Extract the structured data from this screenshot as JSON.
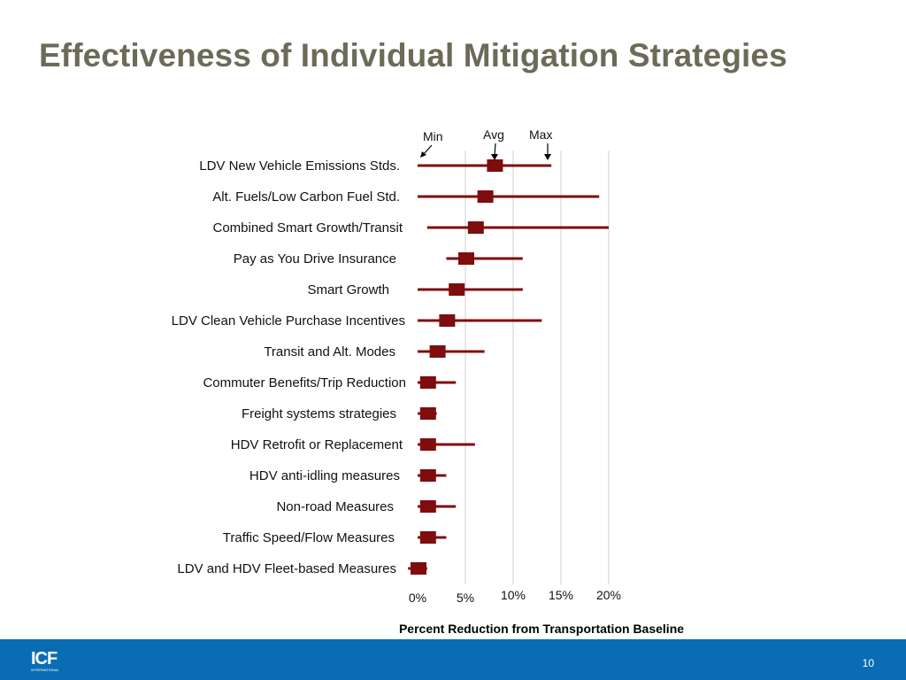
{
  "slide": {
    "title": "Effectiveness of Individual Mitigation Strategies",
    "page_number": "10",
    "logo_text": "ICF",
    "logo_subtext": "INTERNATIONAL"
  },
  "colors": {
    "series": "#7f0d0d",
    "title": "#6b6b58",
    "footer": "#0a6db3",
    "grid": "#cfcfcf"
  },
  "chart_data": {
    "type": "range_plot",
    "title": "",
    "xlabel": "Percent Reduction from Transportation Baseline",
    "ylabel": "",
    "xlim": [
      0,
      20
    ],
    "x_ticks": [
      "0%",
      "5%",
      "10%",
      "15%",
      "20%"
    ],
    "grid": "vertical",
    "annotations": [
      "Min",
      "Avg",
      "Max"
    ],
    "categories": [
      "LDV New Vehicle Emissions Stds.",
      "Alt. Fuels/Low Carbon Fuel Std.",
      "Combined Smart Growth/Transit",
      "Pay as You Drive Insurance",
      "Smart Growth",
      "LDV Clean Vehicle Purchase Incentives",
      "Transit and Alt. Modes",
      "Commuter Benefits/Trip Reduction",
      "Freight systems strategies",
      "HDV Retrofit or Replacement",
      "HDV anti-idling measures",
      "Non-road Measures",
      "Traffic Speed/Flow Measures",
      "LDV and HDV Fleet-based Measures"
    ],
    "series": [
      {
        "name": "Min",
        "values": [
          0,
          0,
          1,
          3,
          0,
          0,
          0,
          0,
          0,
          0,
          0,
          0,
          0,
          -1
        ]
      },
      {
        "name": "Avg",
        "values": [
          8,
          7,
          6,
          5,
          4,
          3,
          2,
          1,
          1,
          1,
          1,
          1,
          1,
          0
        ]
      },
      {
        "name": "Max",
        "values": [
          14,
          19,
          20,
          11,
          11,
          13,
          7,
          4,
          2,
          6,
          3,
          4,
          3,
          1
        ]
      }
    ]
  }
}
